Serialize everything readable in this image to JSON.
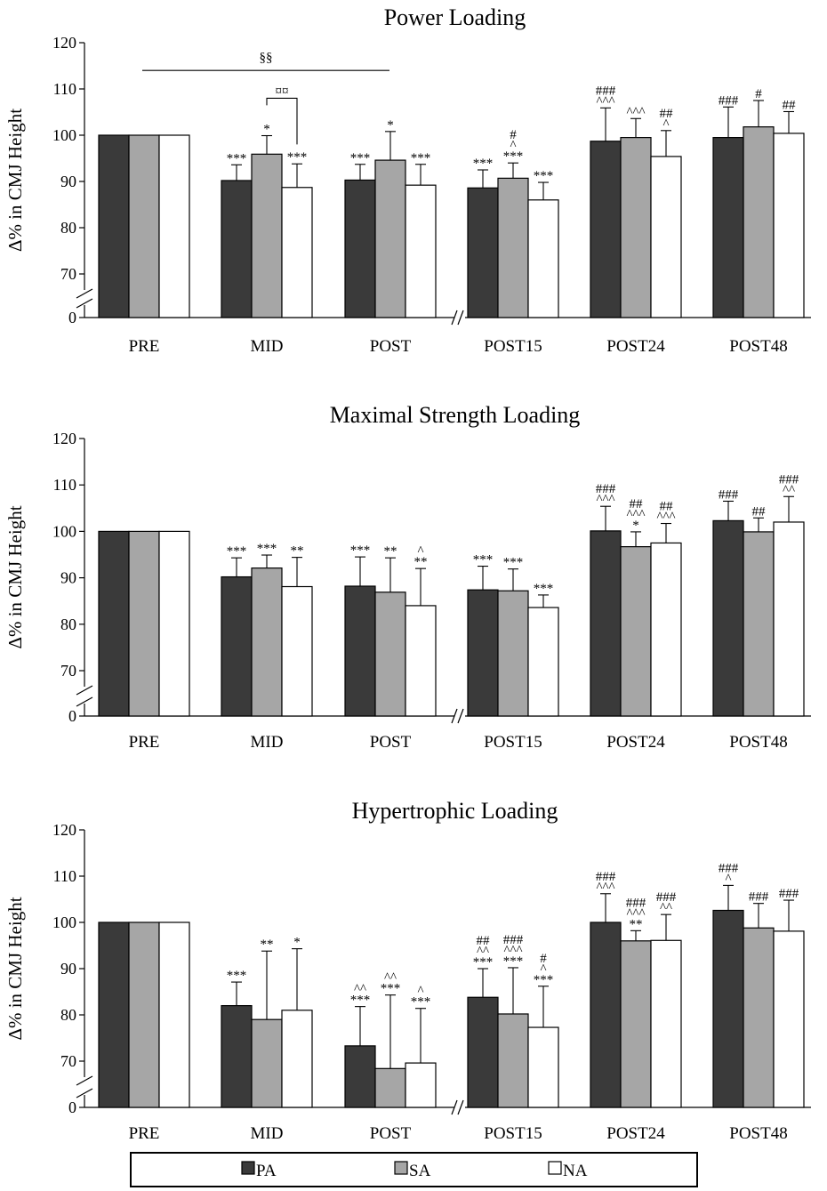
{
  "figure": {
    "legend": [
      {
        "name": "PA",
        "color": "#3a3a3a"
      },
      {
        "name": "SA",
        "color": "#a6a6a6"
      },
      {
        "name": "NA",
        "color": "#ffffff"
      }
    ],
    "edge_color": "#000000"
  },
  "chart_data": [
    {
      "type": "bar",
      "title": "Power Loading",
      "xlabel": "",
      "ylabel": "Δ% in CMJ Height",
      "ylim": [
        65,
        120
      ],
      "y_axis_break": true,
      "yticks": [
        "0",
        "70",
        "80",
        "90",
        "100",
        "110",
        "120"
      ],
      "categories": [
        "PRE",
        "MID",
        "POST",
        "POST15",
        "POST24",
        "POST48"
      ],
      "series": [
        {
          "name": "PA",
          "values": [
            100,
            90.2,
            90.3,
            88.6,
            98.7,
            99.5
          ],
          "errors": [
            0,
            3.4,
            3.4,
            3.9,
            7.2,
            6.6
          ]
        },
        {
          "name": "SA",
          "values": [
            100,
            95.9,
            94.6,
            90.7,
            99.5,
            101.8
          ],
          "errors": [
            0,
            4.0,
            6.2,
            3.3,
            4.1,
            5.7
          ]
        },
        {
          "name": "NA",
          "values": [
            100,
            88.7,
            89.2,
            86.0,
            95.4,
            100.4
          ],
          "errors": [
            0,
            5.1,
            4.5,
            3.8,
            5.6,
            4.7
          ]
        }
      ],
      "annotations": [
        [
          "",
          "",
          ""
        ],
        [
          "***",
          "*",
          "***"
        ],
        [
          "***",
          "*",
          "***"
        ],
        [
          "***",
          "#\n^\n***",
          "***"
        ],
        [
          "###\n^^^",
          "^^^",
          "##\n^"
        ],
        [
          "###",
          "#",
          "##"
        ]
      ],
      "brackets": [
        {
          "label": "§§",
          "from_category": "PRE",
          "to_category": "POST"
        },
        {
          "label": "¤¤",
          "from_series": "SA",
          "to_series": "NA",
          "category": "MID"
        }
      ]
    },
    {
      "type": "bar",
      "title": "Maximal Strength Loading",
      "xlabel": "",
      "ylabel": "Δ% in CMJ Height",
      "ylim": [
        65,
        120
      ],
      "y_axis_break": true,
      "yticks": [
        "0",
        "70",
        "80",
        "90",
        "100",
        "110",
        "120"
      ],
      "categories": [
        "PRE",
        "MID",
        "POST",
        "POST15",
        "POST24",
        "POST48"
      ],
      "series": [
        {
          "name": "PA",
          "values": [
            100,
            90.2,
            88.2,
            87.4,
            100.1,
            102.3
          ],
          "errors": [
            0,
            4.1,
            6.3,
            5.1,
            5.3,
            4.2
          ]
        },
        {
          "name": "SA",
          "values": [
            100,
            92.1,
            86.9,
            87.2,
            96.7,
            99.9
          ],
          "errors": [
            0,
            2.8,
            7.4,
            4.7,
            3.2,
            3.0
          ]
        },
        {
          "name": "NA",
          "values": [
            100,
            88.1,
            84.0,
            83.6,
            97.5,
            102.0
          ],
          "errors": [
            0,
            6.3,
            8.0,
            2.7,
            4.2,
            5.5
          ]
        }
      ],
      "annotations": [
        [
          "",
          "",
          ""
        ],
        [
          "***",
          "***",
          "**"
        ],
        [
          "***",
          "**",
          "^\n**"
        ],
        [
          "***",
          "***",
          "***"
        ],
        [
          "###\n^^^",
          "##\n^^^\n*",
          "##\n^^^"
        ],
        [
          "###",
          "##",
          "###\n^^"
        ]
      ],
      "brackets": []
    },
    {
      "type": "bar",
      "title": "Hypertrophic Loading",
      "xlabel": "",
      "ylabel": "Δ% in CMJ Height",
      "ylim": [
        65,
        120
      ],
      "y_axis_break": true,
      "yticks": [
        "0",
        "70",
        "80",
        "90",
        "100",
        "110",
        "120"
      ],
      "categories": [
        "PRE",
        "MID",
        "POST",
        "POST15",
        "POST24",
        "POST48"
      ],
      "series": [
        {
          "name": "PA",
          "values": [
            100,
            82.0,
            73.3,
            83.8,
            100.0,
            102.6
          ],
          "errors": [
            0,
            5.1,
            8.5,
            6.2,
            6.2,
            5.4
          ]
        },
        {
          "name": "SA",
          "values": [
            100,
            79.0,
            68.4,
            80.2,
            96.0,
            98.8
          ],
          "errors": [
            0,
            14.8,
            15.9,
            10.0,
            2.2,
            5.3
          ]
        },
        {
          "name": "NA",
          "values": [
            100,
            81.0,
            69.6,
            77.3,
            96.1,
            98.1
          ],
          "errors": [
            0,
            13.3,
            11.8,
            8.9,
            5.6,
            6.7
          ]
        }
      ],
      "annotations": [
        [
          "",
          "",
          ""
        ],
        [
          "***",
          "**",
          "*"
        ],
        [
          "^^\n***",
          "^^\n***",
          "^\n***"
        ],
        [
          "##\n^^\n***",
          "###\n^^^\n***",
          "#\n^\n***"
        ],
        [
          "###\n^^^",
          "###\n^^^\n**",
          "###\n^^"
        ],
        [
          "###\n^",
          "###",
          "###"
        ]
      ],
      "brackets": []
    }
  ]
}
